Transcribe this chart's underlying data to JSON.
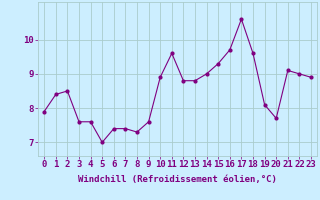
{
  "x": [
    0,
    1,
    2,
    3,
    4,
    5,
    6,
    7,
    8,
    9,
    10,
    11,
    12,
    13,
    14,
    15,
    16,
    17,
    18,
    19,
    20,
    21,
    22,
    23
  ],
  "y": [
    7.9,
    8.4,
    8.5,
    7.6,
    7.6,
    7.0,
    7.4,
    7.4,
    7.3,
    7.6,
    8.9,
    9.6,
    8.8,
    8.8,
    9.0,
    9.3,
    9.7,
    10.6,
    9.6,
    8.1,
    7.7,
    9.1,
    9.0,
    8.9
  ],
  "line_color": "#800080",
  "marker": ".",
  "marker_size": 4,
  "bg_color": "#cceeff",
  "grid_color": "#aacccc",
  "xlabel": "Windchill (Refroidissement éolien,°C)",
  "xlim": [
    -0.5,
    23.5
  ],
  "ylim": [
    6.6,
    11.1
  ],
  "yticks": [
    7,
    8,
    9,
    10
  ],
  "xtick_labels": [
    "0",
    "1",
    "2",
    "3",
    "4",
    "5",
    "6",
    "7",
    "8",
    "9",
    "10",
    "11",
    "12",
    "13",
    "14",
    "15",
    "16",
    "17",
    "18",
    "19",
    "20",
    "21",
    "22",
    "23"
  ],
  "xlabel_fontsize": 6.5,
  "tick_fontsize": 6.5,
  "label_color": "#800080"
}
